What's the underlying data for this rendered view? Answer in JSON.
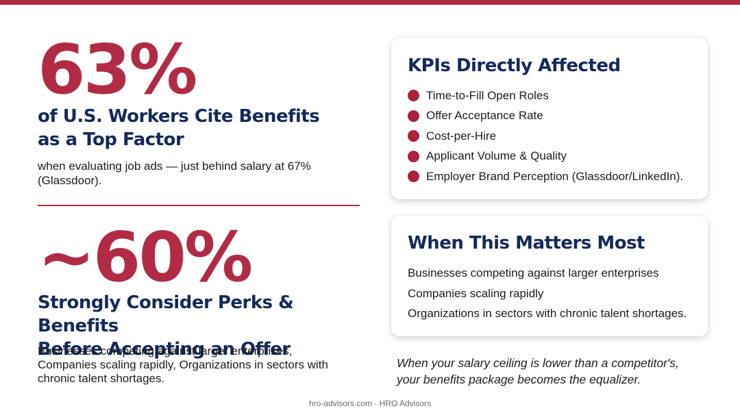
{
  "accent_color": "#b22b44",
  "heading_color": "#14295a",
  "stat1": {
    "value": "63%",
    "heading_line1": "of U.S. Workers Cite Benefits",
    "heading_line2": "as a Top Factor",
    "description": "when evaluating job ads — just behind salary at 67% (Glassdoor)."
  },
  "stat2": {
    "value": "~60%",
    "heading_line1": "Strongly Consider Perks & Benefits",
    "heading_line2": "Before Accepting an Offer",
    "description": "Businesses competing against larger enterprises, Companies scaling rapidly, Organizations in sectors with chronic talent shortages."
  },
  "kpi_card": {
    "title": "KPIs Directly Affected",
    "bullet_icon": "red-dot-icon",
    "items": [
      "Time-to-Fill Open Roles",
      "Offer Acceptance Rate",
      "Cost-per-Hire",
      "Applicant Volume & Quality",
      "Employer Brand Perception (Glassdoor/LinkedIn)."
    ]
  },
  "when_card": {
    "title": "When This Matters Most",
    "items": [
      "Businesses competing against larger enterprises",
      "Companies scaling rapidly",
      "Organizations in sectors with chronic talent shortages."
    ]
  },
  "quote": {
    "line1": "When your salary ceiling is lower than a competitor's,",
    "line2": "your benefits package becomes the equalizer."
  },
  "footer": "hro-advisors.com · HRO Advisors"
}
